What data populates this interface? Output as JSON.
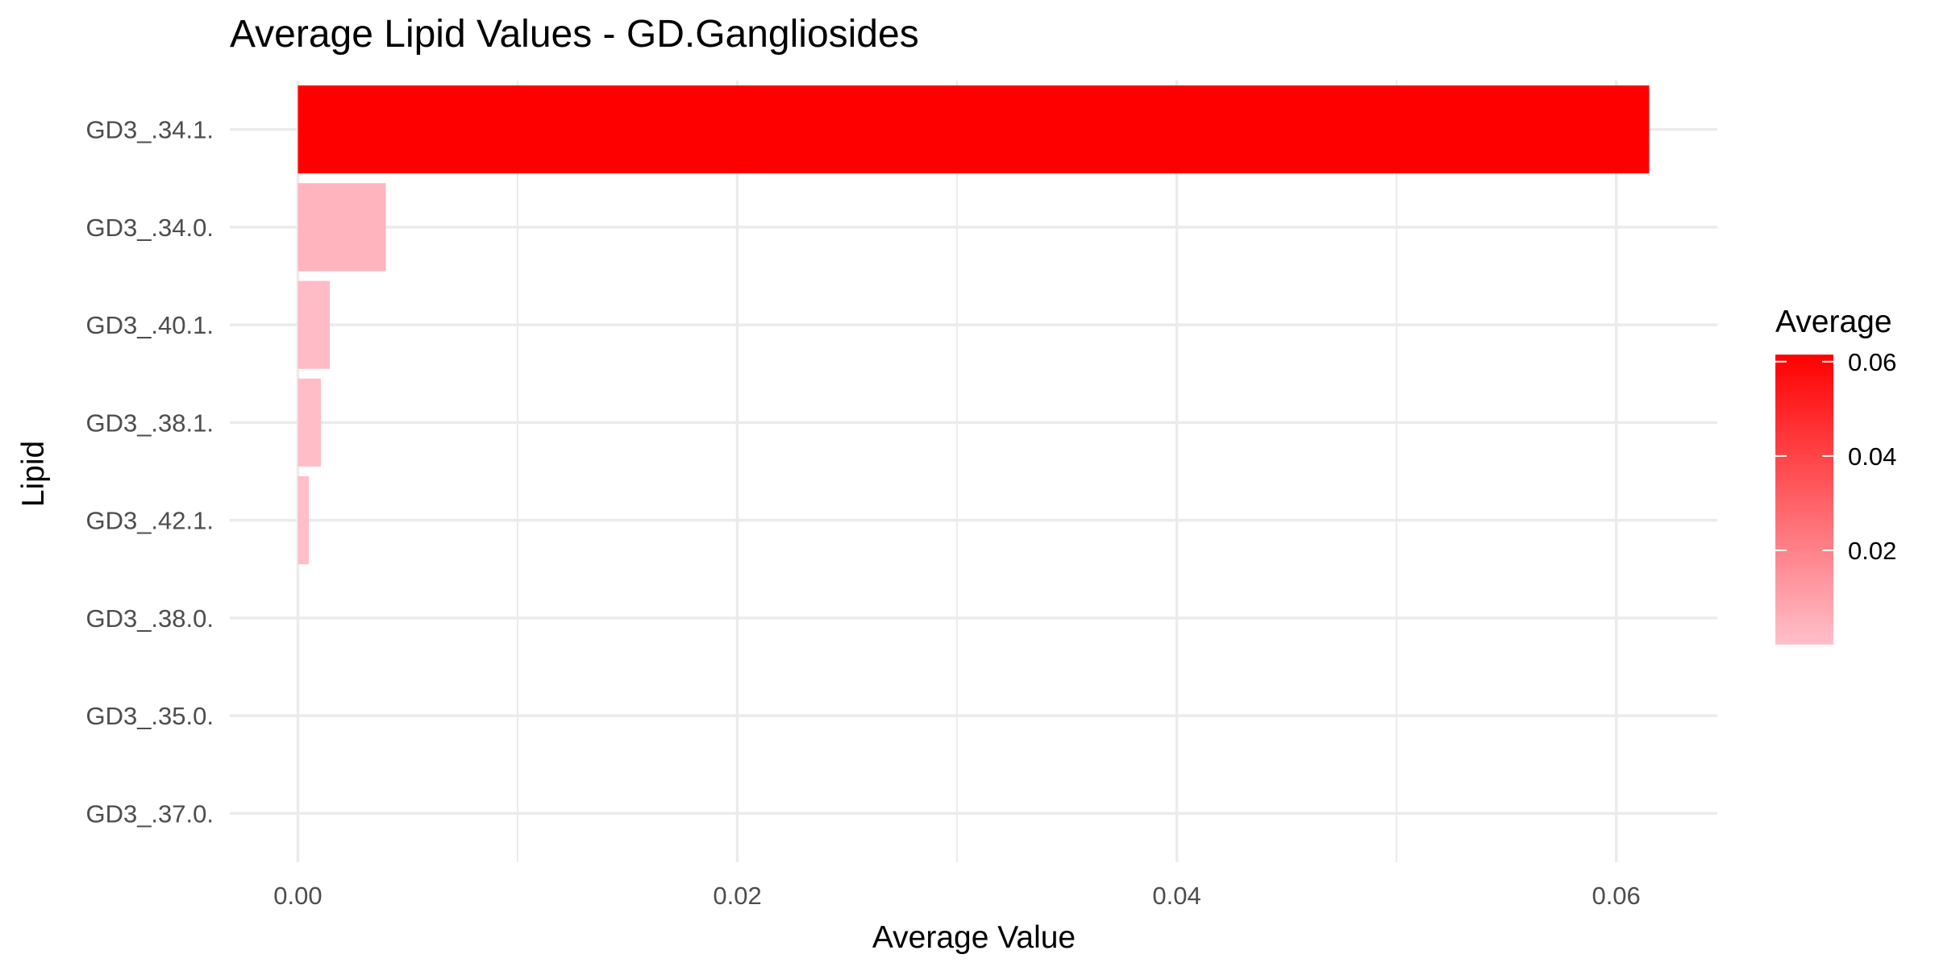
{
  "chart_data": {
    "type": "bar",
    "orientation": "horizontal",
    "title": "Average Lipid Values - GD.Gangliosides",
    "xlabel": "Average Value",
    "ylabel": "Lipid",
    "categories": [
      "GD3_.34.1.",
      "GD3_.34.0.",
      "GD3_.40.1.",
      "GD3_.38.1.",
      "GD3_.42.1.",
      "GD3_.38.0.",
      "GD3_.35.0.",
      "GD3_.37.0."
    ],
    "values": [
      0.0615,
      0.004,
      0.00145,
      0.00105,
      0.0005,
      0.0,
      0.0,
      0.0
    ],
    "xlim": [
      -0.0031,
      0.0646
    ],
    "xticks": [
      "0.00",
      "0.02",
      "0.04",
      "0.06"
    ],
    "xtick_values": [
      0,
      0.02,
      0.04,
      0.06
    ],
    "grid": true,
    "legend": {
      "title": "Average",
      "position": "right",
      "type": "gradient",
      "color_low": "#ffc0cb",
      "color_high": "#ff0000",
      "range": [
        0,
        0.0615
      ],
      "ticks": [
        "0.02",
        "0.04",
        "0.06"
      ],
      "tick_values": [
        0.02,
        0.04,
        0.06
      ]
    }
  }
}
